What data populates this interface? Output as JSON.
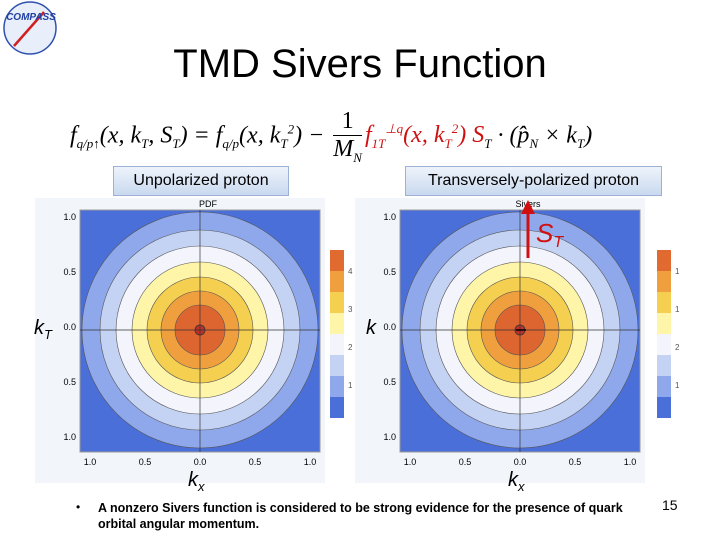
{
  "logo": "COMPASS",
  "title": "TMD Sivers Function",
  "formula": {
    "parts": [
      "f",
      "q/p↑",
      "(x, k",
      "T",
      ", S",
      "T",
      ") = f",
      "q/p",
      "(x, k",
      "T",
      "2",
      ") − ",
      "1",
      "M",
      "N",
      "f",
      "1T",
      "⊥q",
      "(x, k",
      "T",
      "2",
      ") S",
      "T",
      " · (p̂",
      "N",
      " × k",
      "T",
      ")"
    ]
  },
  "panels": [
    {
      "label": "Unpolarized proton",
      "plot_title": "PDF",
      "y_axis": "k",
      "y_axis_sub": "T",
      "x_axis": "k",
      "x_axis_sub": "x",
      "xticks": [
        "1.0",
        "0.5",
        "0.0",
        "0.5",
        "1.0"
      ],
      "yticks": [
        "1.0",
        "0.5",
        "0.0",
        "0.5",
        "1.0"
      ],
      "colorbar": [
        "4",
        "3",
        "2",
        "1"
      ]
    },
    {
      "label": "Transversely-polarized proton",
      "plot_title": "Sivers",
      "y_axis": "k",
      "x_axis": "k",
      "x_axis_sub": "x",
      "xticks": [
        "1.0",
        "0.5",
        "0.0",
        "0.5",
        "1.0"
      ],
      "yticks": [
        "1.0",
        "0.5",
        "0.0",
        "0.5",
        "1.0"
      ],
      "colorbar": [
        "1",
        "1",
        "2",
        "1"
      ],
      "arrow_label": "S",
      "arrow_label_sub": "T"
    }
  ],
  "bullet": "A nonzero Sivers function is considered to be strong evidence for the presence of quark orbital angular momentum.",
  "page_number": "15"
}
